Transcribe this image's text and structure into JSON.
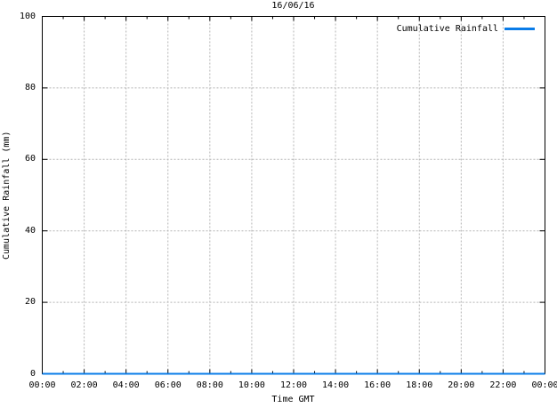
{
  "chart_data": {
    "type": "line",
    "title": "16/06/16",
    "xlabel": "Time GMT",
    "ylabel": "Cumulative Rainfall (mm)",
    "x_tick_labels": [
      "00:00",
      "02:00",
      "04:00",
      "06:00",
      "08:00",
      "10:00",
      "12:00",
      "14:00",
      "16:00",
      "18:00",
      "20:00",
      "22:00",
      "00:00"
    ],
    "x_tick_hours": [
      0,
      2,
      4,
      6,
      8,
      10,
      12,
      14,
      16,
      18,
      20,
      22,
      24
    ],
    "x_minor_tick_hours": [
      1,
      3,
      5,
      7,
      9,
      11,
      13,
      15,
      17,
      19,
      21,
      23
    ],
    "y_ticks": [
      0,
      20,
      40,
      60,
      80,
      100
    ],
    "y_grid_values": [
      20,
      40,
      60,
      80
    ],
    "x_grid_hours": [
      2,
      4,
      6,
      8,
      10,
      12,
      14,
      16,
      18,
      20,
      22
    ],
    "xlim_hours": [
      0,
      24
    ],
    "ylim": [
      0,
      100
    ],
    "grid": true,
    "legend_position": "top-right",
    "series": [
      {
        "name": "Cumulative Rainfall",
        "color": "#0a7ce8",
        "x_hours": [
          0,
          1,
          2,
          3,
          4,
          5,
          6,
          7,
          8,
          9,
          10,
          11,
          12,
          13,
          14,
          15,
          16,
          17,
          18,
          19,
          20,
          21,
          22,
          23,
          24
        ],
        "values": [
          0,
          0,
          0,
          0,
          0,
          0,
          0,
          0,
          0,
          0,
          0,
          0,
          0,
          0,
          0,
          0,
          0,
          0,
          0,
          0,
          0,
          0,
          0,
          0,
          0
        ]
      }
    ],
    "colors": {
      "frame": "#000000",
      "grid": "#b4b4b4",
      "text": "#000000",
      "background": "#ffffff"
    }
  }
}
